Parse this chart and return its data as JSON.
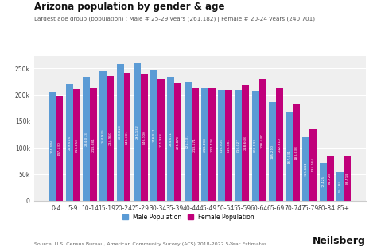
{
  "title": "Arizona population by gender & age",
  "subtitle": "Largest age group (population) : Male # 25-29 years (261,182) | Female # 20-24 years (240,701)",
  "source": "Source: U.S. Census Bureau, American Community Survey (ACS) 2018-2022 5-Year Estimates",
  "branding": "Neilsberg",
  "age_groups": [
    "0-4",
    "5-9",
    "10-14",
    "15-19",
    "20-24",
    "25-29",
    "30-34",
    "35-39",
    "40-44",
    "45-49",
    "50-54",
    "55-59",
    "60-64",
    "65-69",
    "70-74",
    "75-79",
    "80-84",
    "85+"
  ],
  "male": [
    205506,
    219555,
    234013,
    244975,
    260023,
    261182,
    248011,
    234511,
    225131,
    213498,
    210405,
    210027,
    208533,
    185210,
    167031,
    119641,
    72425,
    55181
  ],
  "female": [
    197130,
    210650,
    213081,
    234960,
    240701,
    240100,
    231383,
    221878,
    213171,
    212728,
    210481,
    218668,
    228647,
    212810,
    183033,
    135964,
    84723,
    83714
  ],
  "male_color": "#5B9BD5",
  "female_color": "#C0007A",
  "male_label": "Male Population",
  "female_label": "Female Population",
  "ylim": [
    0,
    275000
  ],
  "yticks": [
    0,
    50000,
    100000,
    150000,
    200000,
    250000
  ],
  "ytick_labels": [
    "0",
    "50k",
    "100k",
    "150k",
    "200k",
    "250k"
  ],
  "bg_color": "#ffffff",
  "plot_bg_color": "#efefef",
  "title_fontsize": 8.5,
  "subtitle_fontsize": 5.2,
  "bar_label_fontsize": 3.2,
  "axis_fontsize": 5.5,
  "legend_fontsize": 5.5,
  "source_fontsize": 4.5,
  "branding_fontsize": 9
}
